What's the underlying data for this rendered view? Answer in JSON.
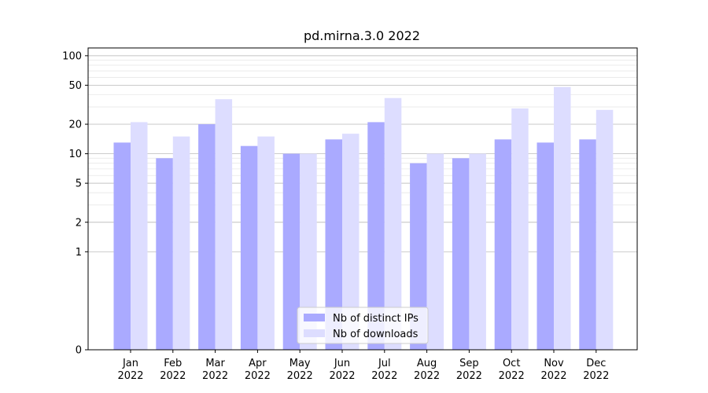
{
  "chart_data": {
    "type": "bar",
    "title": "pd.mirna.3.0 2022",
    "xlabel": "",
    "ylabel": "",
    "y_scale": "symlog",
    "ylim": [
      0,
      120
    ],
    "y_ticks": [
      0,
      1,
      2,
      5,
      10,
      20,
      50,
      100
    ],
    "y_tick_labels": [
      "0",
      "1",
      "2",
      "5",
      "10",
      "20",
      "50",
      "100"
    ],
    "grid": true,
    "legend_position": "bottom-center",
    "categories": [
      "Jan\n2022",
      "Feb\n2022",
      "Mar\n2022",
      "Apr\n2022",
      "May\n2022",
      "Jun\n2022",
      "Jul\n2022",
      "Aug\n2022",
      "Sep\n2022",
      "Oct\n2022",
      "Nov\n2022",
      "Dec\n2022"
    ],
    "series": [
      {
        "name": "Nb of distinct IPs",
        "color": "#aaaaff",
        "values": [
          13,
          9,
          20,
          12,
          10,
          14,
          21,
          8,
          9,
          14,
          13,
          14
        ]
      },
      {
        "name": "Nb of downloads",
        "color": "#ddddff",
        "values": [
          21,
          15,
          36,
          15,
          10,
          16,
          37,
          10,
          10,
          29,
          48,
          28
        ]
      }
    ]
  }
}
